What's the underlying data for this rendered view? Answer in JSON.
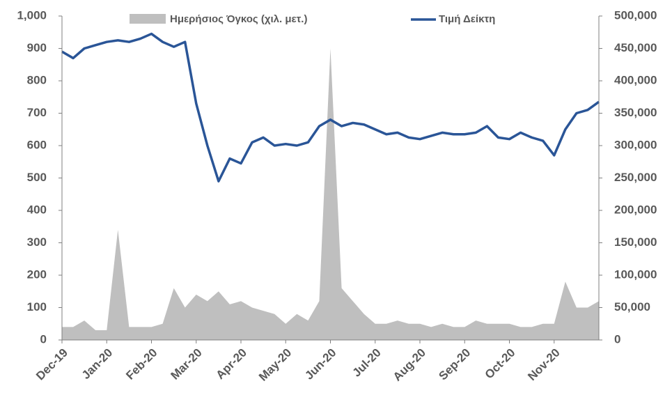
{
  "chart_data": {
    "type": "line",
    "categories": [
      "Dec-19",
      null,
      null,
      null,
      "Jan-20",
      null,
      null,
      null,
      "Feb-20",
      null,
      null,
      null,
      "Mar-20",
      null,
      null,
      null,
      "Apr-20",
      null,
      null,
      null,
      "May-20",
      null,
      null,
      null,
      "Jun-20",
      null,
      null,
      null,
      "Jul-20",
      null,
      null,
      null,
      "Aug-20",
      null,
      null,
      null,
      "Sep-20",
      null,
      null,
      null,
      "Oct-20",
      null,
      null,
      null,
      "Nov-20",
      null,
      null,
      null,
      null
    ],
    "series": [
      {
        "name": "Ημερήσιος Όγκος (χιλ. μετ.)",
        "type": "area",
        "axis": "y2",
        "color": "#bfbfbf",
        "values": [
          20000,
          20000,
          30000,
          15000,
          15000,
          170000,
          20000,
          20000,
          20000,
          25000,
          80000,
          50000,
          70000,
          60000,
          75000,
          55000,
          60000,
          50000,
          45000,
          40000,
          25000,
          40000,
          30000,
          60000,
          450000,
          80000,
          60000,
          40000,
          25000,
          25000,
          30000,
          25000,
          25000,
          20000,
          25000,
          20000,
          20000,
          30000,
          25000,
          25000,
          25000,
          20000,
          20000,
          25000,
          25000,
          90000,
          50000,
          50000,
          60000
        ]
      },
      {
        "name": "Τιμή Δείκτη",
        "type": "line",
        "color": "#2a5597",
        "values": [
          890,
          870,
          900,
          910,
          920,
          925,
          920,
          930,
          945,
          920,
          905,
          920,
          730,
          600,
          490,
          560,
          545,
          610,
          625,
          600,
          605,
          600,
          610,
          660,
          680,
          660,
          670,
          665,
          650,
          635,
          640,
          625,
          620,
          630,
          640,
          635,
          635,
          640,
          660,
          625,
          620,
          640,
          625,
          615,
          570,
          650,
          700,
          710,
          735
        ]
      }
    ],
    "ylim": [
      0,
      1000
    ],
    "yticks": [
      0,
      100,
      200,
      300,
      400,
      500,
      600,
      700,
      800,
      900,
      {
        "value": 1000,
        "label": "1,000"
      }
    ],
    "y2lim": [
      0,
      500000
    ],
    "y2ticks": [
      0,
      {
        "value": 50000,
        "label": "50,000"
      },
      {
        "value": 100000,
        "label": "100,000"
      },
      {
        "value": 150000,
        "label": "150,000"
      },
      {
        "value": 200000,
        "label": "200,000"
      },
      {
        "value": 250000,
        "label": "250,000"
      },
      {
        "value": 300000,
        "label": "300,000"
      },
      {
        "value": 350000,
        "label": "350,000"
      },
      {
        "value": 400000,
        "label": "400,000"
      },
      {
        "value": 450000,
        "label": "450,000"
      },
      {
        "value": 500000,
        "label": "500,000"
      }
    ],
    "legend": "top"
  }
}
